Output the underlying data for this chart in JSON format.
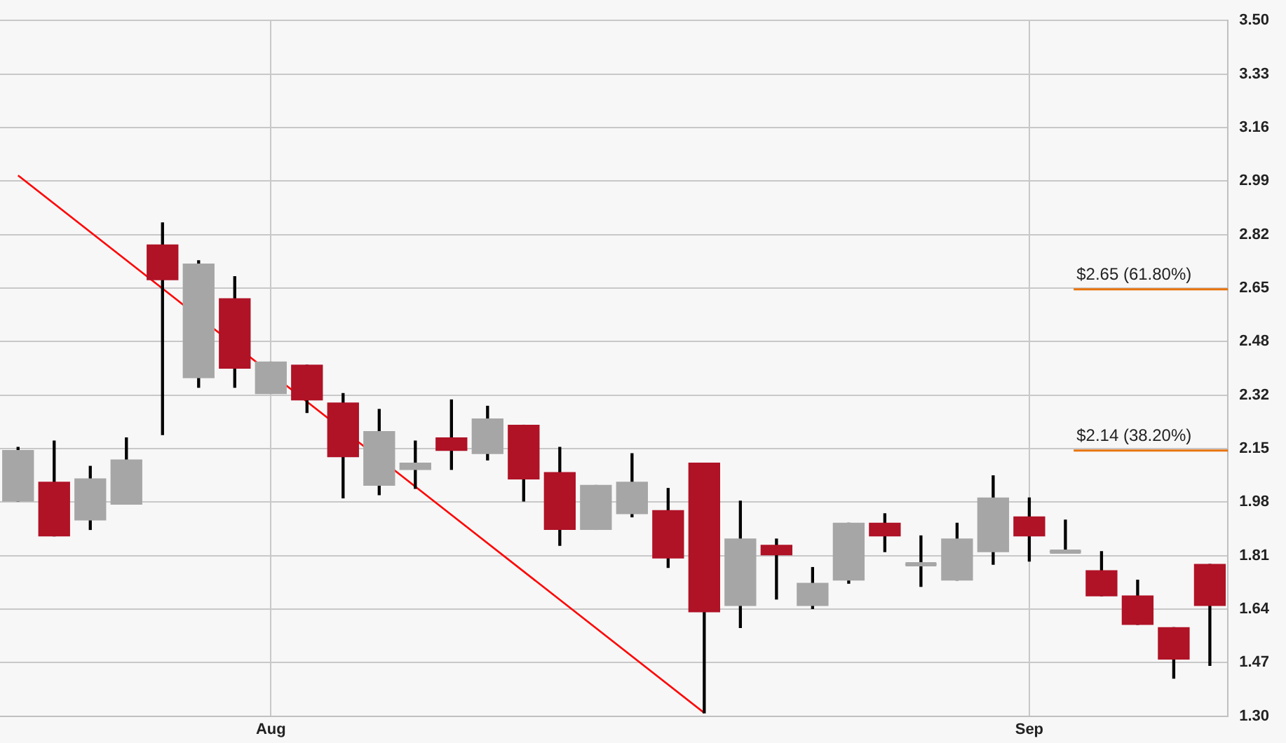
{
  "chart_data": {
    "type": "candlestick",
    "categories": [
      null,
      null,
      null,
      null,
      null,
      null,
      null,
      "Aug",
      null,
      null,
      null,
      null,
      null,
      null,
      null,
      null,
      null,
      null,
      null,
      null,
      null,
      null,
      null,
      null,
      null,
      null,
      null,
      null,
      "Sep",
      null,
      null,
      null,
      null,
      null
    ],
    "ohlc": [
      [
        1.98,
        2.15,
        1.98,
        2.14
      ],
      [
        2.04,
        2.17,
        1.87,
        1.87
      ],
      [
        1.92,
        2.09,
        1.89,
        2.05
      ],
      [
        1.97,
        2.18,
        1.97,
        2.11
      ],
      [
        2.79,
        2.86,
        2.19,
        2.68
      ],
      [
        2.37,
        2.74,
        2.34,
        2.73
      ],
      [
        2.62,
        2.69,
        2.34,
        2.4
      ],
      [
        2.32,
        2.42,
        2.32,
        2.42
      ],
      [
        2.41,
        2.41,
        2.26,
        2.3
      ],
      [
        2.29,
        2.32,
        1.99,
        2.12
      ],
      [
        2.03,
        2.27,
        2.0,
        2.2
      ],
      [
        2.08,
        2.17,
        2.02,
        2.1
      ],
      [
        2.18,
        2.3,
        2.08,
        2.14
      ],
      [
        2.13,
        2.28,
        2.11,
        2.24
      ],
      [
        2.22,
        2.22,
        1.98,
        2.05
      ],
      [
        2.07,
        2.15,
        1.84,
        1.89
      ],
      [
        1.89,
        2.03,
        1.89,
        2.03
      ],
      [
        1.94,
        2.13,
        1.93,
        2.04
      ],
      [
        1.95,
        2.02,
        1.77,
        1.8
      ],
      [
        2.1,
        2.1,
        1.31,
        1.63
      ],
      [
        1.65,
        1.98,
        1.58,
        1.86
      ],
      [
        1.84,
        1.86,
        1.67,
        1.81
      ],
      [
        1.65,
        1.77,
        1.64,
        1.72
      ],
      [
        1.73,
        1.91,
        1.72,
        1.91
      ],
      [
        1.91,
        1.94,
        1.82,
        1.87
      ],
      [
        1.78,
        1.87,
        1.71,
        1.78
      ],
      [
        1.73,
        1.91,
        1.73,
        1.86
      ],
      [
        1.82,
        2.06,
        1.78,
        1.99
      ],
      [
        1.93,
        1.99,
        1.79,
        1.87
      ],
      [
        1.82,
        1.92,
        1.82,
        1.82
      ],
      [
        1.76,
        1.82,
        1.68,
        1.68
      ],
      [
        1.68,
        1.73,
        1.59,
        1.59
      ],
      [
        1.58,
        1.58,
        1.42,
        1.48
      ],
      [
        1.78,
        1.78,
        1.46,
        1.65
      ]
    ],
    "colors": [
      "#a6a6a6",
      "#b01226",
      "#a6a6a6",
      "#a6a6a6",
      "#b01226",
      "#a6a6a6",
      "#b01226",
      "#a6a6a6",
      "#b01226",
      "#b01226",
      "#a6a6a6",
      "#a6a6a6",
      "#b01226",
      "#a6a6a6",
      "#b01226",
      "#b01226",
      "#a6a6a6",
      "#a6a6a6",
      "#b01226",
      "#b01226",
      "#a6a6a6",
      "#b01226",
      "#a6a6a6",
      "#a6a6a6",
      "#b01226",
      "#a6a6a6",
      "#a6a6a6",
      "#a6a6a6",
      "#b01226",
      "#a6a6a6",
      "#b01226",
      "#b01226",
      "#b01226",
      "#b01226"
    ],
    "series": [
      {
        "type": "line",
        "color": "#ff0000",
        "values": [
          3.01,
          null,
          null,
          null,
          null,
          null,
          null,
          null,
          null,
          null,
          null,
          null,
          null,
          null,
          null,
          null,
          null,
          null,
          null,
          1.31,
          null,
          null,
          null,
          null,
          null,
          null,
          null,
          null,
          null,
          null,
          null,
          null,
          null,
          null
        ]
      }
    ],
    "ylim": [
      1.3,
      3.5
    ],
    "yticks": [
      {
        "value": 1.3,
        "label": "1.30"
      },
      {
        "value": 1.4692,
        "label": "1.47"
      },
      {
        "value": 1.6385,
        "label": "1.64"
      },
      {
        "value": 1.8077,
        "label": "1.81"
      },
      {
        "value": 1.9769,
        "label": "1.98"
      },
      {
        "value": 2.1462,
        "label": "2.15"
      },
      {
        "value": 2.3154,
        "label": "2.32"
      },
      {
        "value": 2.4846,
        "label": "2.48"
      },
      {
        "value": 2.6538,
        "label": "2.65"
      },
      {
        "value": 2.8231,
        "label": "2.82"
      },
      {
        "value": 2.9923,
        "label": "2.99"
      },
      {
        "value": 3.1615,
        "label": "3.16"
      },
      {
        "value": 3.3308,
        "label": "3.33"
      },
      {
        "value": 3.5,
        "label": "3.50"
      }
    ],
    "ref_lines": [
      {
        "axis": "y",
        "value": 2.65,
        "label": "$2.65 (61.80%)",
        "color": "#e8730c"
      },
      {
        "axis": "y",
        "value": 2.14,
        "label": "$2.14 (38.20%)",
        "color": "#e8730c"
      }
    ],
    "grid": true,
    "legend": false
  }
}
